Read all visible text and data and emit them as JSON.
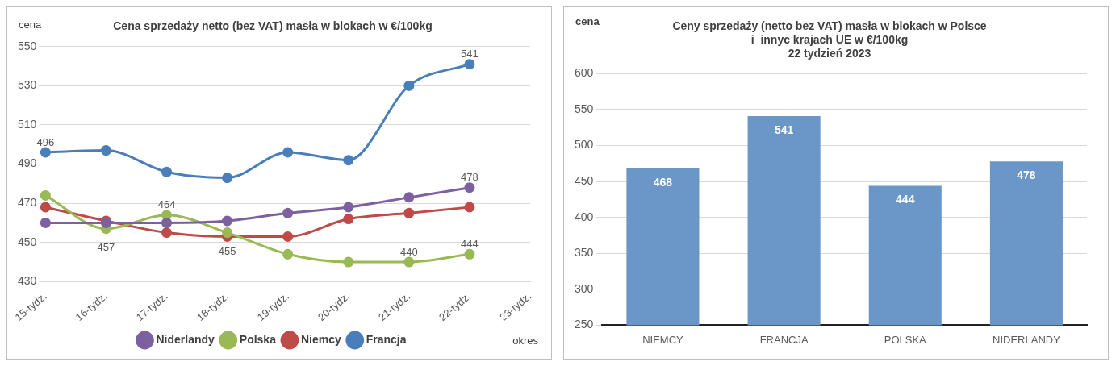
{
  "chart_data": [
    {
      "type": "line",
      "title": "Cena sprzedaży netto (bez VAT) masła w blokach w €/100kg",
      "ylabel": "cena",
      "xlabel": "okres",
      "categories": [
        "15-tydz.",
        "16-tydz.",
        "17-tydz.",
        "18-tydz.",
        "19-tydz.",
        "20-tydz.",
        "21-tydz.",
        "22-tydz.",
        "23-tydz."
      ],
      "series": [
        {
          "name": "Francja",
          "color": "#4a7ebb",
          "values": [
            496,
            497,
            486,
            483,
            496,
            492,
            530,
            541,
            null
          ],
          "value_labels": [
            "496",
            null,
            null,
            null,
            null,
            null,
            null,
            "541",
            null
          ]
        },
        {
          "name": "Niemcy",
          "color": "#be4b48",
          "values": [
            468,
            461,
            455,
            453,
            453,
            462,
            465,
            468,
            null
          ]
        },
        {
          "name": "Polska",
          "color": "#98b954",
          "values": [
            474,
            457,
            464,
            455,
            444,
            440,
            440,
            444,
            null
          ],
          "value_labels": [
            null,
            "457",
            "464",
            "455",
            null,
            null,
            "440",
            "444",
            null
          ]
        },
        {
          "name": "Niderlandy",
          "color": "#7d60a0",
          "values": [
            460,
            460,
            460,
            461,
            465,
            468,
            473,
            478,
            null
          ],
          "value_labels": [
            null,
            null,
            null,
            null,
            null,
            null,
            null,
            "478",
            null
          ]
        }
      ],
      "ylim": [
        430,
        550
      ],
      "yticks": [
        430,
        450,
        470,
        490,
        510,
        530,
        550
      ],
      "grid": "y",
      "legend": "bottom",
      "marker": "circle"
    },
    {
      "type": "bar",
      "title": "Ceny sprzedaży (netto bez VAT) masła w blokach w Polsce\ni  innyc krajach UE w €/100kg\n22 tydzień 2023",
      "ylabel": "cena",
      "categories": [
        "NIEMCY",
        "FRANCJA",
        "POLSKA",
        "NIDERLANDY"
      ],
      "values": [
        468,
        541,
        444,
        478
      ],
      "color": "#6a96c8",
      "ylim": [
        250,
        600
      ],
      "yticks": [
        250,
        300,
        350,
        400,
        450,
        500,
        550,
        600
      ],
      "grid": "y",
      "data_labels": true
    }
  ]
}
